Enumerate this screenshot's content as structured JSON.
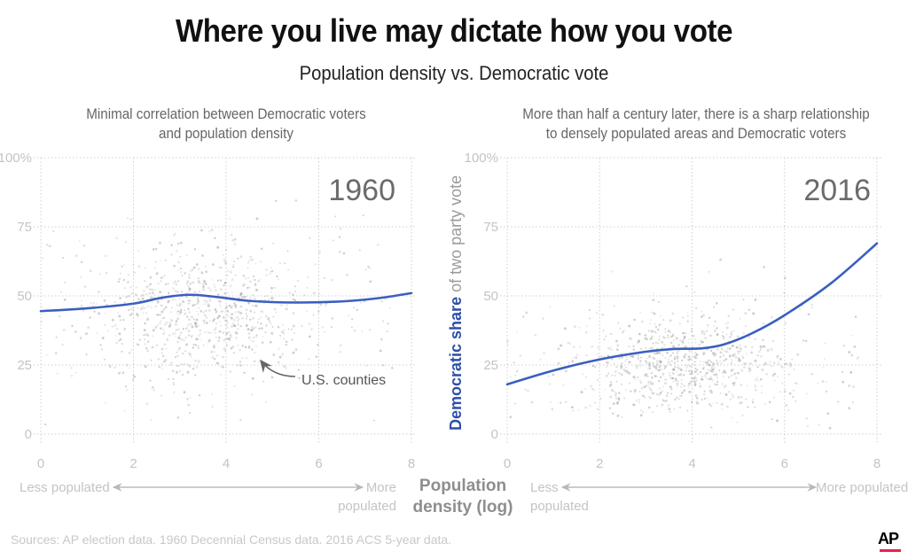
{
  "header": {
    "title": "Where you live may dictate how you vote",
    "subtitle": "Population density vs. Democratic vote"
  },
  "footer": {
    "sources": "Sources: AP election data. 1960 Decennial Census data. 2016 ACS 5-year data.",
    "logo": "AP"
  },
  "colors": {
    "trend": "#3a5fbf",
    "points": "#9aa09c",
    "axis_text": "#c4c4c4",
    "ylabel_accent": "#2d4fa8",
    "logo_bar": "#e4244c"
  },
  "chart_data": [
    {
      "type": "scatter",
      "id": "1960",
      "panel_label": "1960",
      "caption_lines": [
        "Minimal correlation between Democratic voters",
        "and population density"
      ],
      "xlabel": "Population density (log)",
      "ylabel": "Democratic share of two party vote",
      "xlim": [
        0,
        8
      ],
      "ylim": [
        0,
        100
      ],
      "x_ticks": [
        "0",
        "2",
        "4",
        "6",
        "8"
      ],
      "y_ticks": [
        "0",
        "25",
        "50",
        "75",
        "100%"
      ],
      "grid": true,
      "annotation": "U.S. counties",
      "direction_left": "Less populated",
      "direction_right": [
        "More",
        "populated"
      ],
      "points_description": "U.S. counties; dense cloud centered near x=3.5, y=40",
      "cloud": {
        "cx": 3.5,
        "cy": 42,
        "sx": 1.0,
        "sy": 12,
        "n": 900
      },
      "trend": {
        "name": "Trend",
        "x": [
          0,
          1,
          2,
          2.6,
          3.2,
          3.8,
          4.5,
          5.5,
          6.5,
          7.3,
          8
        ],
        "y": [
          44.5,
          45.5,
          47.2,
          49.3,
          50.4,
          49.6,
          48.2,
          47.6,
          48.0,
          49.2,
          51.0
        ]
      }
    },
    {
      "type": "scatter",
      "id": "2016",
      "panel_label": "2016",
      "caption_lines": [
        "More than half a century later, there is a sharp relationship",
        "to densely populated areas and Democratic voters"
      ],
      "xlabel": "Population density (log)",
      "ylabel": "Democratic share of two party vote",
      "xlim": [
        0,
        8
      ],
      "ylim": [
        0,
        100
      ],
      "x_ticks": [
        "0",
        "2",
        "4",
        "6",
        "8"
      ],
      "y_ticks": [
        "0",
        "25",
        "50",
        "75",
        "100%"
      ],
      "grid": true,
      "direction_left": [
        "Less",
        "populated"
      ],
      "direction_right": "More populated",
      "points_description": "U.S. counties; dense cloud centered near x=3.8, y=25",
      "cloud": {
        "cx": 3.8,
        "cy": 25,
        "sx": 1.0,
        "sy": 9,
        "n": 900
      },
      "trend": {
        "name": "Trend",
        "x": [
          0,
          1,
          2,
          3,
          3.6,
          4.2,
          4.7,
          5.3,
          6,
          7,
          8
        ],
        "y": [
          18,
          23,
          27,
          29.8,
          30.8,
          31.0,
          32.5,
          36.5,
          43,
          54.5,
          69
        ]
      }
    }
  ],
  "axis_title": {
    "x_line1": "Population",
    "x_line2": "density (log)",
    "y_accent": "Democratic share",
    "y_rest": " of two party vote"
  }
}
